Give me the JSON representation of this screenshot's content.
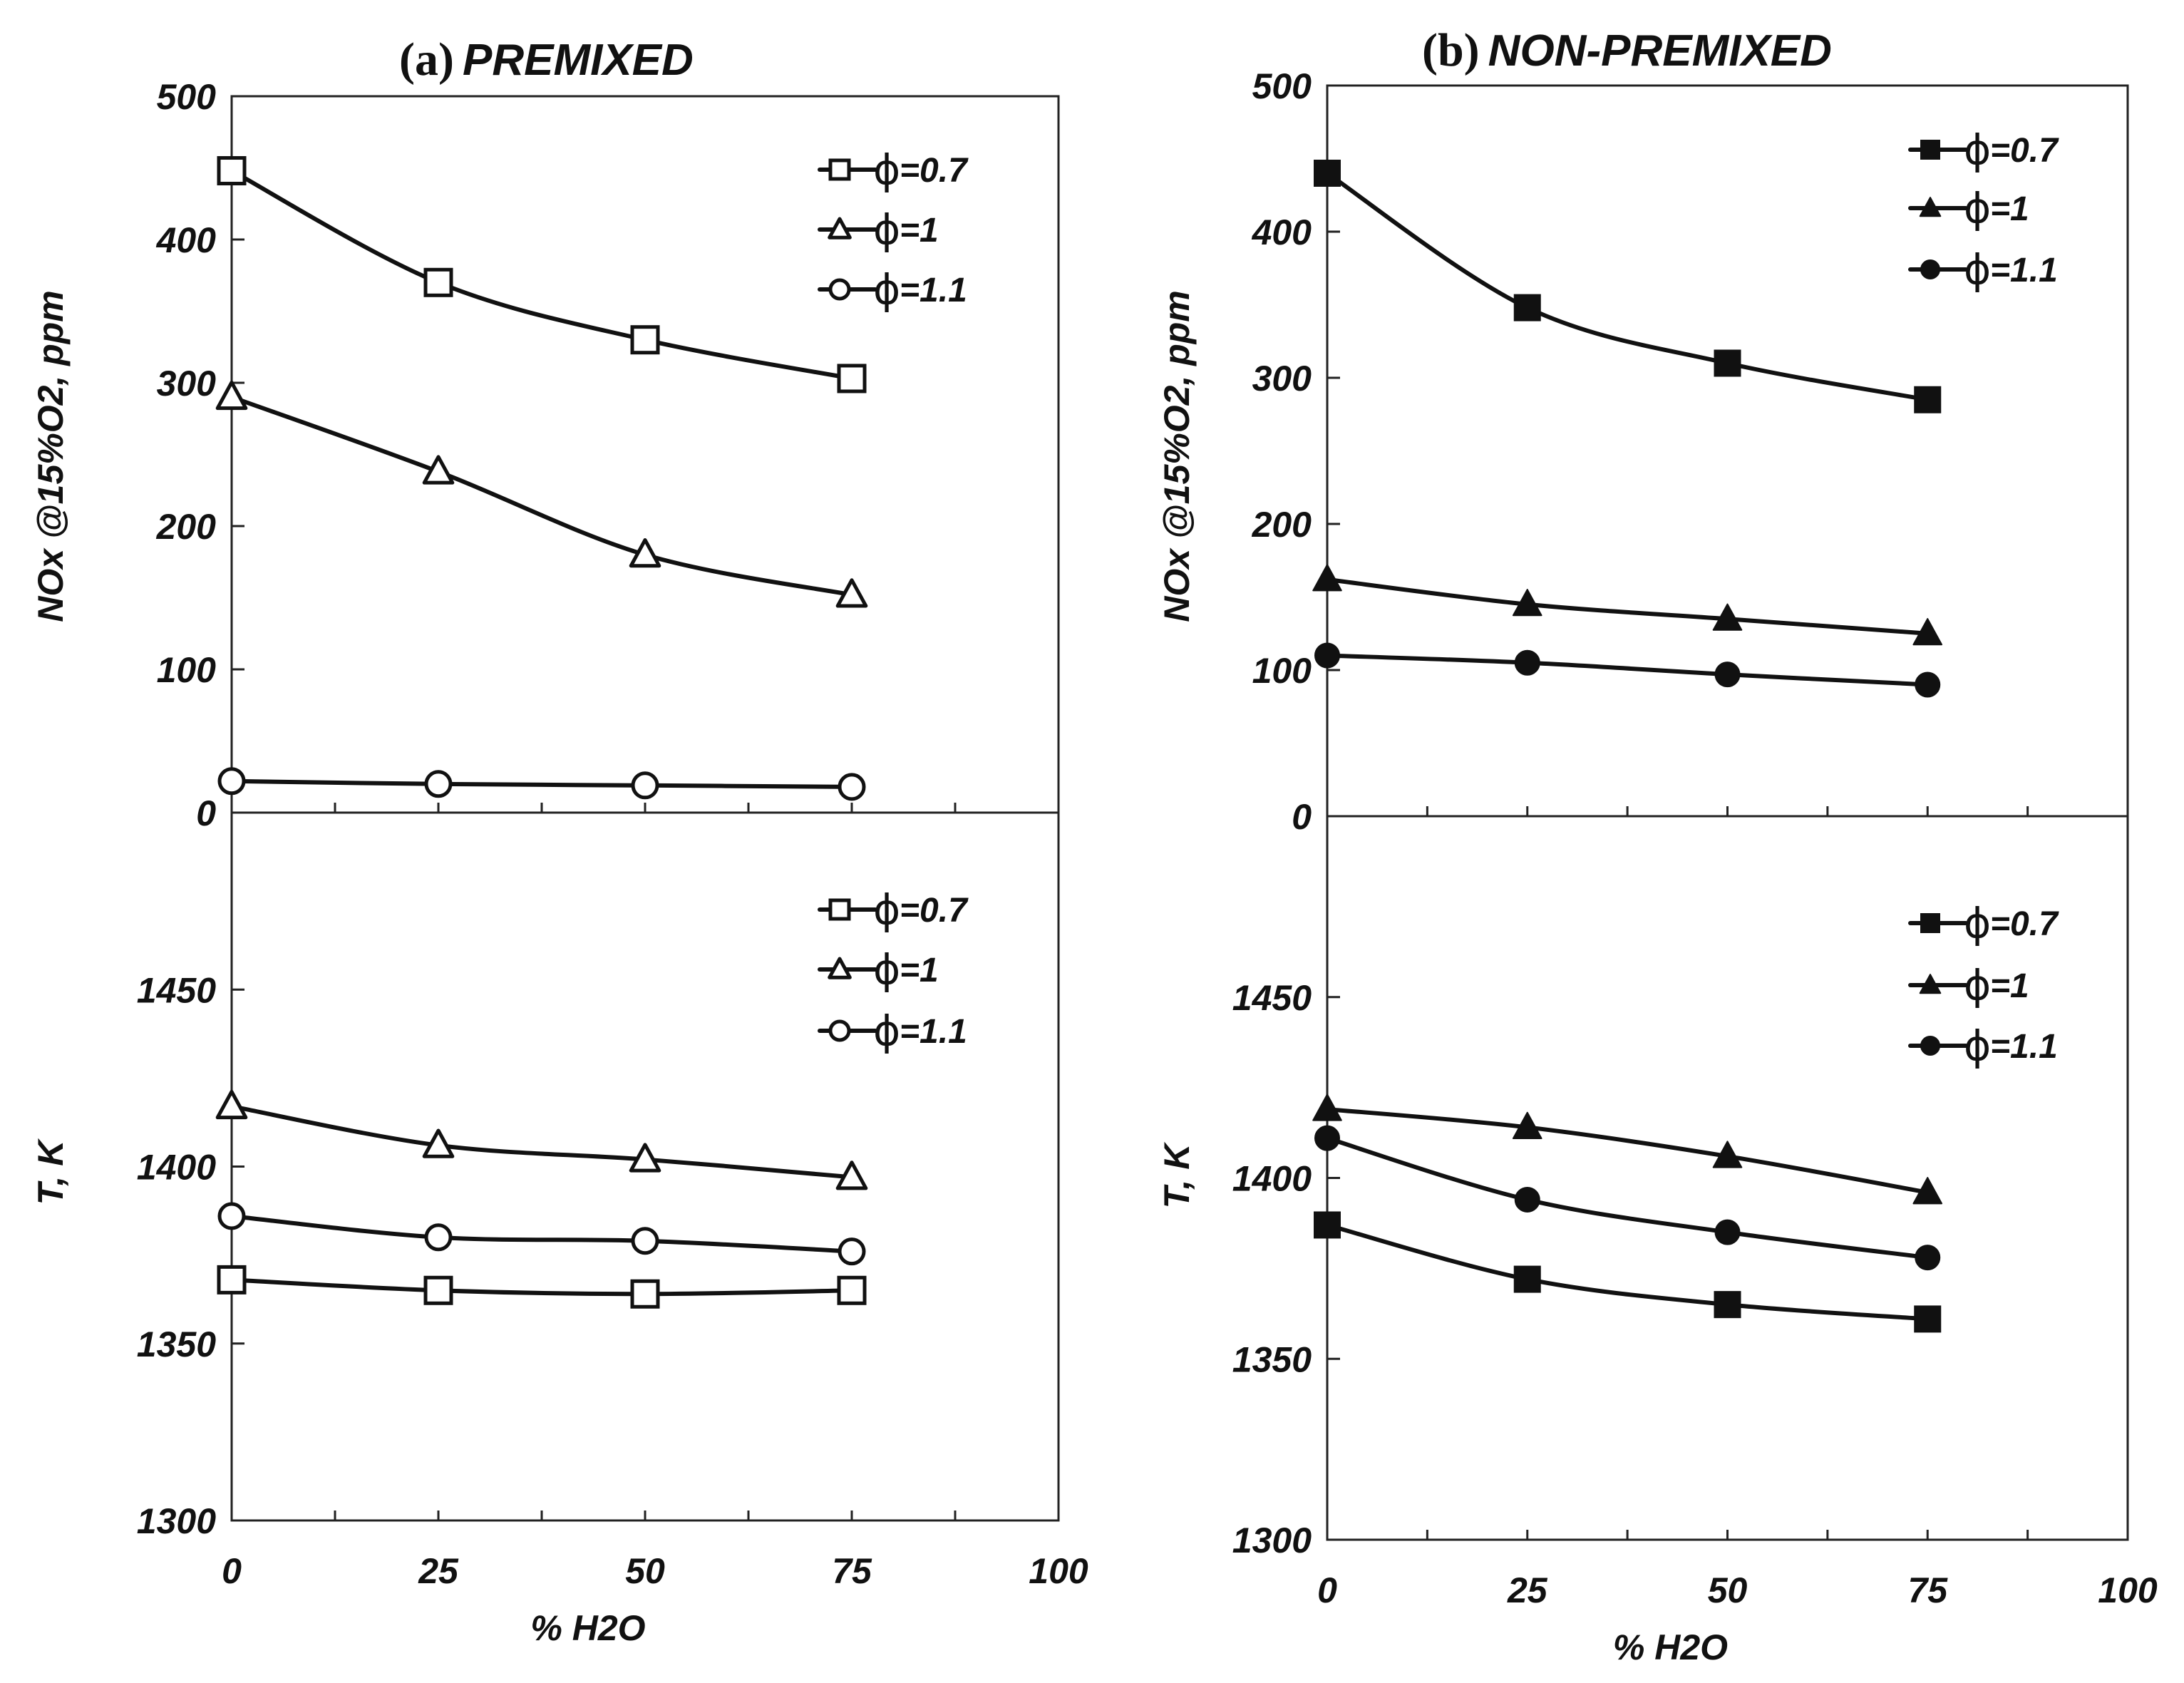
{
  "chart_data": [
    {
      "id": "premixed-nox",
      "type": "line",
      "panel_label": "(a)",
      "title": "PREMIXED",
      "xlabel": "% H2O",
      "ylabel": "NOx @15%O2, ppm",
      "xlim": [
        0,
        100
      ],
      "ylim": [
        0,
        500
      ],
      "xticks": [
        0,
        25,
        50,
        75,
        100
      ],
      "yticks": [
        0,
        100,
        200,
        300,
        400,
        500
      ],
      "x": [
        0,
        25,
        50,
        75
      ],
      "legend_position": "top-right",
      "series": [
        {
          "name": "ϕ =0.7",
          "phi": "=0.7",
          "marker": "square-open",
          "values": [
            448,
            370,
            330,
            303
          ]
        },
        {
          "name": "ϕ =1",
          "phi": "=1",
          "marker": "triangle-open",
          "values": [
            290,
            238,
            180,
            152
          ]
        },
        {
          "name": "ϕ =1.1",
          "phi": "=1.1",
          "marker": "circle-open",
          "values": [
            22,
            20,
            19,
            18
          ]
        }
      ]
    },
    {
      "id": "premixed-temp",
      "type": "line",
      "panel_label": "",
      "title": "",
      "xlabel": "% H2O",
      "ylabel": "T, K",
      "xlim": [
        0,
        100
      ],
      "ylim": [
        1300,
        1500
      ],
      "xticks": [
        0,
        25,
        50,
        75,
        100
      ],
      "yticks": [
        1300,
        1350,
        1400,
        1450
      ],
      "x": [
        0,
        25,
        50,
        75
      ],
      "legend_position": "top-right",
      "series": [
        {
          "name": "ϕ =0.7",
          "phi": "=0.7",
          "marker": "square-open",
          "values": [
            1368,
            1365,
            1364,
            1365
          ]
        },
        {
          "name": "ϕ =1",
          "phi": "=1",
          "marker": "triangle-open",
          "values": [
            1417,
            1406,
            1402,
            1397
          ]
        },
        {
          "name": "ϕ =1.1",
          "phi": "=1.1",
          "marker": "circle-open",
          "values": [
            1386,
            1380,
            1379,
            1376
          ]
        }
      ]
    },
    {
      "id": "nonpremixed-nox",
      "type": "line",
      "panel_label": "(b)",
      "title": "NON-PREMIXED",
      "xlabel": "% H2O",
      "ylabel": "NOx @15%O2, ppm",
      "xlim": [
        0,
        100
      ],
      "ylim": [
        0,
        500
      ],
      "xticks": [
        0,
        25,
        50,
        75,
        100
      ],
      "yticks": [
        0,
        100,
        200,
        300,
        400,
        500
      ],
      "x": [
        0,
        25,
        50,
        75
      ],
      "legend_position": "top-right",
      "series": [
        {
          "name": "ϕ =0.7",
          "phi": "=0.7",
          "marker": "square-filled",
          "values": [
            440,
            348,
            310,
            285
          ]
        },
        {
          "name": "ϕ =1",
          "phi": "=1",
          "marker": "triangle-filled",
          "values": [
            162,
            145,
            135,
            125
          ]
        },
        {
          "name": "ϕ =1.1",
          "phi": "=1.1",
          "marker": "circle-filled",
          "values": [
            110,
            105,
            97,
            90
          ]
        }
      ]
    },
    {
      "id": "nonpremixed-temp",
      "type": "line",
      "panel_label": "",
      "title": "",
      "xlabel": "% H2O",
      "ylabel": "T, K",
      "xlim": [
        0,
        100
      ],
      "ylim": [
        1300,
        1500
      ],
      "xticks": [
        0,
        25,
        50,
        75,
        100
      ],
      "yticks": [
        1300,
        1350,
        1400,
        1450
      ],
      "x": [
        0,
        25,
        50,
        75
      ],
      "legend_position": "top-right",
      "series": [
        {
          "name": "ϕ =0.7",
          "phi": "=0.7",
          "marker": "square-filled",
          "values": [
            1387,
            1372,
            1365,
            1361
          ]
        },
        {
          "name": "ϕ =1",
          "phi": "=1",
          "marker": "triangle-filled",
          "values": [
            1419,
            1414,
            1406,
            1396
          ]
        },
        {
          "name": "ϕ =1.1",
          "phi": "=1.1",
          "marker": "circle-filled",
          "values": [
            1411,
            1394,
            1385,
            1378
          ]
        }
      ]
    }
  ]
}
